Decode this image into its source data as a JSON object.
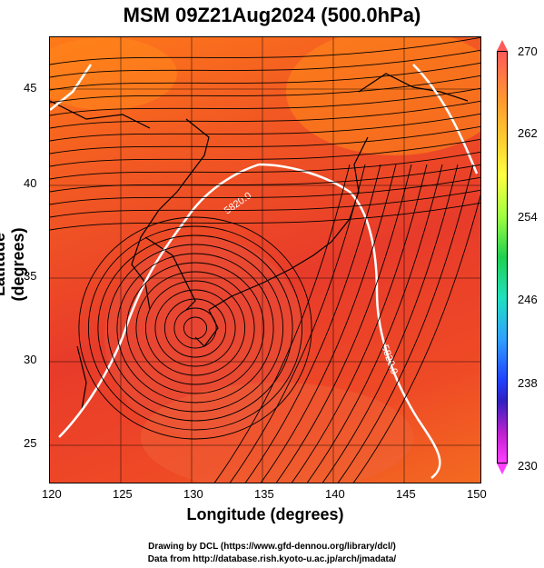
{
  "title": "MSM 09Z21Aug2024 (500.0hPa)",
  "x_axis": {
    "label": "Longitude (degrees)",
    "ticks": [
      "120",
      "125",
      "130",
      "135",
      "140",
      "145",
      "150"
    ]
  },
  "y_axis": {
    "label": "Latitude  (degrees)",
    "ticks": [
      "25",
      "30",
      "35",
      "40",
      "45"
    ]
  },
  "colorbar": {
    "labels": [
      "270",
      "262",
      "254",
      "246",
      "238",
      "230"
    ]
  },
  "contour_label": "5820.0",
  "credits": {
    "line1": "Drawing by DCL (https://www.gfd-dennou.org/library/dcl/)",
    "line2": "Data from http://database.rish.kyoto-u.ac.jp/arch/jmadata/"
  },
  "colors": {
    "field_warm": "#e83b2a",
    "field_orange": "#ff7a1a",
    "contour": "#ffffff",
    "vectors": "#000000"
  }
}
